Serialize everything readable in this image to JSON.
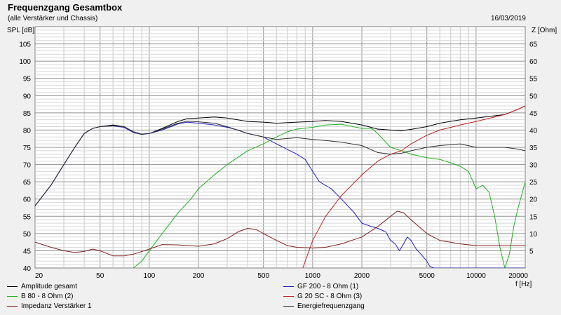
{
  "header": {
    "title": "Frequenzgang Gesamtbox",
    "subtitle": "(alle Verstärker und Chassis)",
    "date": "16/03/2019"
  },
  "chart_data": {
    "type": "line",
    "x_scale": "log",
    "xlim": [
      20,
      20000
    ],
    "ylim": [
      40,
      110
    ],
    "y2lim": [
      0,
      70
    ],
    "ylabel": "SPL [dB]",
    "y2label": "Z [Ohm]",
    "xlabel": "f [Hz]",
    "grid": true,
    "legend_position": "bottom",
    "x_ticks": [
      "20",
      "50",
      "100",
      "200",
      "500",
      "1000",
      "2000",
      "5000",
      "10000",
      "20000"
    ],
    "y_ticks": [
      "40",
      "45",
      "50",
      "55",
      "60",
      "65",
      "70",
      "75",
      "80",
      "85",
      "90",
      "95",
      "100",
      "105"
    ],
    "y2_ticks": [
      "5",
      "10",
      "15",
      "20",
      "25",
      "30",
      "35",
      "40",
      "45",
      "50",
      "55",
      "60",
      "65"
    ],
    "series": [
      {
        "name": "Amplitude gesamt",
        "color": "#000000",
        "axis": "left",
        "points": [
          [
            20,
            58
          ],
          [
            25,
            64
          ],
          [
            30,
            70
          ],
          [
            35,
            75
          ],
          [
            40,
            79
          ],
          [
            45,
            80.5
          ],
          [
            50,
            81
          ],
          [
            60,
            81.5
          ],
          [
            70,
            81
          ],
          [
            80,
            79.5
          ],
          [
            90,
            78.8
          ],
          [
            100,
            79
          ],
          [
            120,
            80.5
          ],
          [
            150,
            82.5
          ],
          [
            170,
            83.3
          ],
          [
            200,
            83.5
          ],
          [
            250,
            83.8
          ],
          [
            300,
            83.5
          ],
          [
            400,
            82.5
          ],
          [
            500,
            82.3
          ],
          [
            600,
            82
          ],
          [
            800,
            82.3
          ],
          [
            1000,
            82.5
          ],
          [
            1200,
            82.8
          ],
          [
            1500,
            82.5
          ],
          [
            2000,
            81.5
          ],
          [
            2500,
            80.3
          ],
          [
            3000,
            80
          ],
          [
            3500,
            79.8
          ],
          [
            4000,
            80.2
          ],
          [
            5000,
            81
          ],
          [
            6000,
            82
          ],
          [
            8000,
            83
          ],
          [
            10000,
            83.5
          ],
          [
            15000,
            84.5
          ],
          [
            18000,
            86
          ],
          [
            20000,
            87
          ]
        ]
      },
      {
        "name": "GF 200 - 8 Ohm (1)",
        "color": "#2020c0",
        "axis": "left",
        "points": [
          [
            20,
            58
          ],
          [
            25,
            64
          ],
          [
            30,
            70
          ],
          [
            35,
            75
          ],
          [
            40,
            79
          ],
          [
            45,
            80.5
          ],
          [
            50,
            81
          ],
          [
            60,
            81.2
          ],
          [
            70,
            80.8
          ],
          [
            80,
            79.3
          ],
          [
            90,
            78.7
          ],
          [
            100,
            79
          ],
          [
            120,
            80
          ],
          [
            150,
            81.8
          ],
          [
            170,
            82.3
          ],
          [
            200,
            82
          ],
          [
            250,
            81.5
          ],
          [
            300,
            80.8
          ],
          [
            350,
            80
          ],
          [
            400,
            79
          ],
          [
            500,
            78
          ],
          [
            600,
            76
          ],
          [
            800,
            73
          ],
          [
            900,
            71.5
          ],
          [
            1000,
            68
          ],
          [
            1100,
            65
          ],
          [
            1300,
            63
          ],
          [
            1500,
            60
          ],
          [
            1800,
            56
          ],
          [
            2000,
            53
          ],
          [
            2300,
            52
          ],
          [
            2500,
            51.5
          ],
          [
            2800,
            50.5
          ],
          [
            3000,
            48
          ],
          [
            3200,
            47
          ],
          [
            3400,
            45
          ],
          [
            3600,
            47
          ],
          [
            3800,
            49
          ],
          [
            4000,
            48
          ],
          [
            4300,
            45.5
          ],
          [
            4600,
            44
          ],
          [
            5000,
            42
          ],
          [
            5200,
            40.5
          ],
          [
            5500,
            40
          ],
          [
            7000,
            40
          ],
          [
            20000,
            40
          ]
        ]
      },
      {
        "name": "B 80 - 8 Ohm (2)",
        "color": "#20b020",
        "axis": "left",
        "points": [
          [
            80,
            40
          ],
          [
            90,
            42
          ],
          [
            100,
            45
          ],
          [
            120,
            50
          ],
          [
            150,
            56
          ],
          [
            180,
            60
          ],
          [
            200,
            63
          ],
          [
            250,
            67
          ],
          [
            300,
            70
          ],
          [
            400,
            74
          ],
          [
            500,
            76
          ],
          [
            600,
            78
          ],
          [
            700,
            79.5
          ],
          [
            800,
            80.3
          ],
          [
            1000,
            80.8
          ],
          [
            1200,
            81.5
          ],
          [
            1500,
            81.7
          ],
          [
            2000,
            80.5
          ],
          [
            2300,
            80.5
          ],
          [
            2500,
            79
          ],
          [
            3000,
            75
          ],
          [
            3500,
            74
          ],
          [
            4000,
            73
          ],
          [
            5000,
            72
          ],
          [
            6000,
            71.5
          ],
          [
            7000,
            70.5
          ],
          [
            8000,
            69.5
          ],
          [
            9000,
            68
          ],
          [
            10000,
            63
          ],
          [
            11000,
            64
          ],
          [
            12000,
            62
          ],
          [
            13000,
            55
          ],
          [
            14000,
            46
          ],
          [
            15000,
            40
          ],
          [
            16000,
            44
          ],
          [
            17000,
            52
          ],
          [
            18000,
            57
          ],
          [
            20000,
            65
          ]
        ]
      },
      {
        "name": "G 20 SC - 8 Ohm (3)",
        "color": "#c02020",
        "axis": "left",
        "points": [
          [
            870,
            40
          ],
          [
            1000,
            48
          ],
          [
            1200,
            55
          ],
          [
            1500,
            61
          ],
          [
            2000,
            67
          ],
          [
            2500,
            71
          ],
          [
            3000,
            73
          ],
          [
            3500,
            74
          ],
          [
            4000,
            76
          ],
          [
            5000,
            78.5
          ],
          [
            6000,
            80
          ],
          [
            8000,
            81.5
          ],
          [
            10000,
            82.5
          ],
          [
            15000,
            84.5
          ],
          [
            18000,
            86
          ],
          [
            20000,
            87
          ]
        ]
      },
      {
        "name": "Impedanz Verstärker 1",
        "color": "#802020",
        "axis": "right",
        "points": [
          [
            20,
            7.5
          ],
          [
            25,
            6
          ],
          [
            30,
            5
          ],
          [
            35,
            4.5
          ],
          [
            40,
            4.8
          ],
          [
            45,
            5.5
          ],
          [
            50,
            5
          ],
          [
            60,
            3.5
          ],
          [
            70,
            3.5
          ],
          [
            80,
            4
          ],
          [
            100,
            5.5
          ],
          [
            120,
            6.8
          ],
          [
            150,
            6.7
          ],
          [
            200,
            6.3
          ],
          [
            250,
            7
          ],
          [
            300,
            8.5
          ],
          [
            350,
            10.5
          ],
          [
            400,
            11.5
          ],
          [
            450,
            11.2
          ],
          [
            500,
            10
          ],
          [
            600,
            8
          ],
          [
            700,
            6.5
          ],
          [
            800,
            6
          ],
          [
            1000,
            5.8
          ],
          [
            1200,
            6
          ],
          [
            1500,
            7
          ],
          [
            2000,
            9
          ],
          [
            2500,
            12
          ],
          [
            3000,
            15
          ],
          [
            3300,
            16.5
          ],
          [
            3600,
            16
          ],
          [
            4000,
            14
          ],
          [
            5000,
            10
          ],
          [
            6000,
            8
          ],
          [
            8000,
            7
          ],
          [
            10000,
            6.5
          ],
          [
            15000,
            6.5
          ],
          [
            20000,
            6.5
          ]
        ]
      },
      {
        "name": "Energiefrequenzgang",
        "color": "#303030",
        "axis": "left",
        "points": [
          [
            20,
            58
          ],
          [
            25,
            64
          ],
          [
            30,
            70
          ],
          [
            35,
            75
          ],
          [
            40,
            79
          ],
          [
            45,
            80.5
          ],
          [
            50,
            81
          ],
          [
            60,
            81.3
          ],
          [
            70,
            81
          ],
          [
            80,
            79.5
          ],
          [
            90,
            78.8
          ],
          [
            100,
            79
          ],
          [
            120,
            80.3
          ],
          [
            150,
            82
          ],
          [
            170,
            82.6
          ],
          [
            200,
            82.4
          ],
          [
            250,
            82
          ],
          [
            300,
            81
          ],
          [
            400,
            79
          ],
          [
            500,
            78
          ],
          [
            600,
            77.3
          ],
          [
            800,
            77.8
          ],
          [
            1000,
            77.3
          ],
          [
            1200,
            77
          ],
          [
            1500,
            76.5
          ],
          [
            2000,
            75.5
          ],
          [
            2500,
            73.5
          ],
          [
            3000,
            73
          ],
          [
            3500,
            73.3
          ],
          [
            4000,
            74
          ],
          [
            5000,
            75
          ],
          [
            6000,
            75.5
          ],
          [
            8000,
            76
          ],
          [
            10000,
            75
          ],
          [
            15000,
            75
          ],
          [
            18000,
            74.5
          ],
          [
            20000,
            74
          ]
        ]
      }
    ]
  }
}
